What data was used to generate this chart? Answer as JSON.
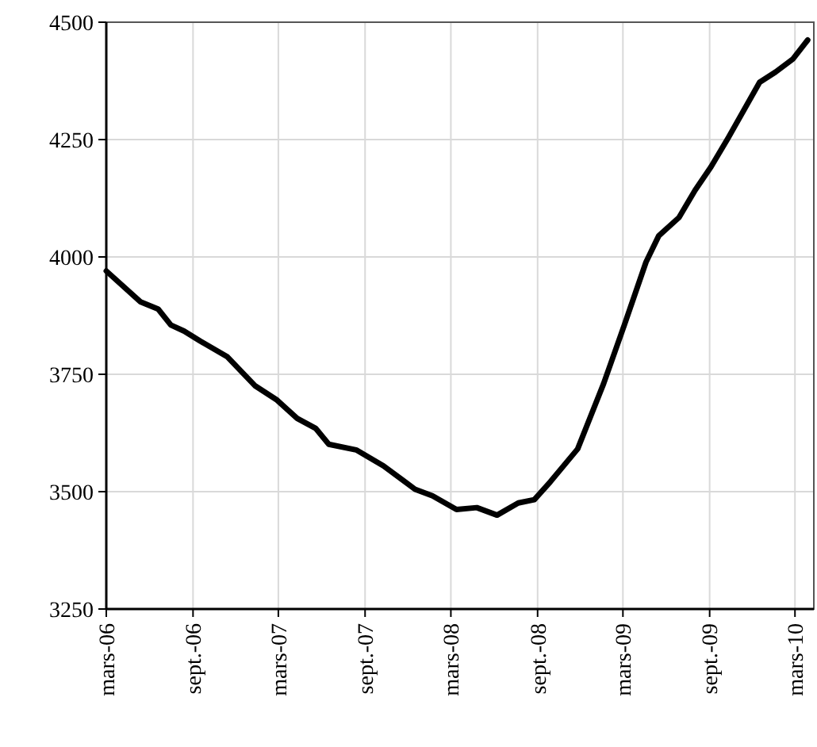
{
  "chart_data": {
    "type": "line",
    "grid": true,
    "line_style": "solid",
    "marker": "none",
    "x": [
      "2006-03-01",
      "2006-05-13",
      "2006-06-19",
      "2006-07-16",
      "2006-08-13",
      "2006-09-16",
      "2006-11-13",
      "2007-01-10",
      "2007-02-25",
      "2007-04-10",
      "2007-05-19",
      "2007-06-16",
      "2007-08-13",
      "2007-10-10",
      "2007-12-16",
      "2008-01-22",
      "2008-03-13",
      "2008-04-25",
      "2008-06-07",
      "2008-07-22",
      "2008-08-25",
      "2008-09-28",
      "2008-11-25",
      "2009-01-19",
      "2009-03-04",
      "2009-04-19",
      "2009-05-16",
      "2009-06-28",
      "2009-08-01",
      "2009-09-04",
      "2009-10-10",
      "2009-12-16",
      "2010-01-19",
      "2010-02-25",
      "2010-03-28"
    ],
    "series": [
      {
        "color": "#000000",
        "values": [
          3970,
          3904,
          3889,
          3855,
          3842,
          3821,
          3787,
          3726,
          3696,
          3656,
          3635,
          3601,
          3589,
          3555,
          3505,
          3491,
          3462,
          3466,
          3450,
          3476,
          3483,
          3521,
          3591,
          3730,
          3855,
          3989,
          4045,
          4084,
          4142,
          4192,
          4253,
          4372,
          4394,
          4422,
          4462
        ]
      }
    ],
    "xlim": [
      "2006-03-01",
      "2010-04-10"
    ],
    "xticks": [
      {
        "value": "2006-03-01",
        "label": "mars-06"
      },
      {
        "value": "2006-09-01",
        "label": "sept.-06"
      },
      {
        "value": "2007-03-01",
        "label": "mars-07"
      },
      {
        "value": "2007-09-01",
        "label": "sept.-07"
      },
      {
        "value": "2008-03-01",
        "label": "mars-08"
      },
      {
        "value": "2008-09-01",
        "label": "sept.-08"
      },
      {
        "value": "2009-03-01",
        "label": "mars-09"
      },
      {
        "value": "2009-09-01",
        "label": "sept.-09"
      },
      {
        "value": "2010-03-01",
        "label": "mars-10"
      }
    ],
    "ylim": [
      3250,
      4500
    ],
    "yticks": [
      3250,
      3500,
      3750,
      4000,
      4250,
      4500
    ]
  }
}
